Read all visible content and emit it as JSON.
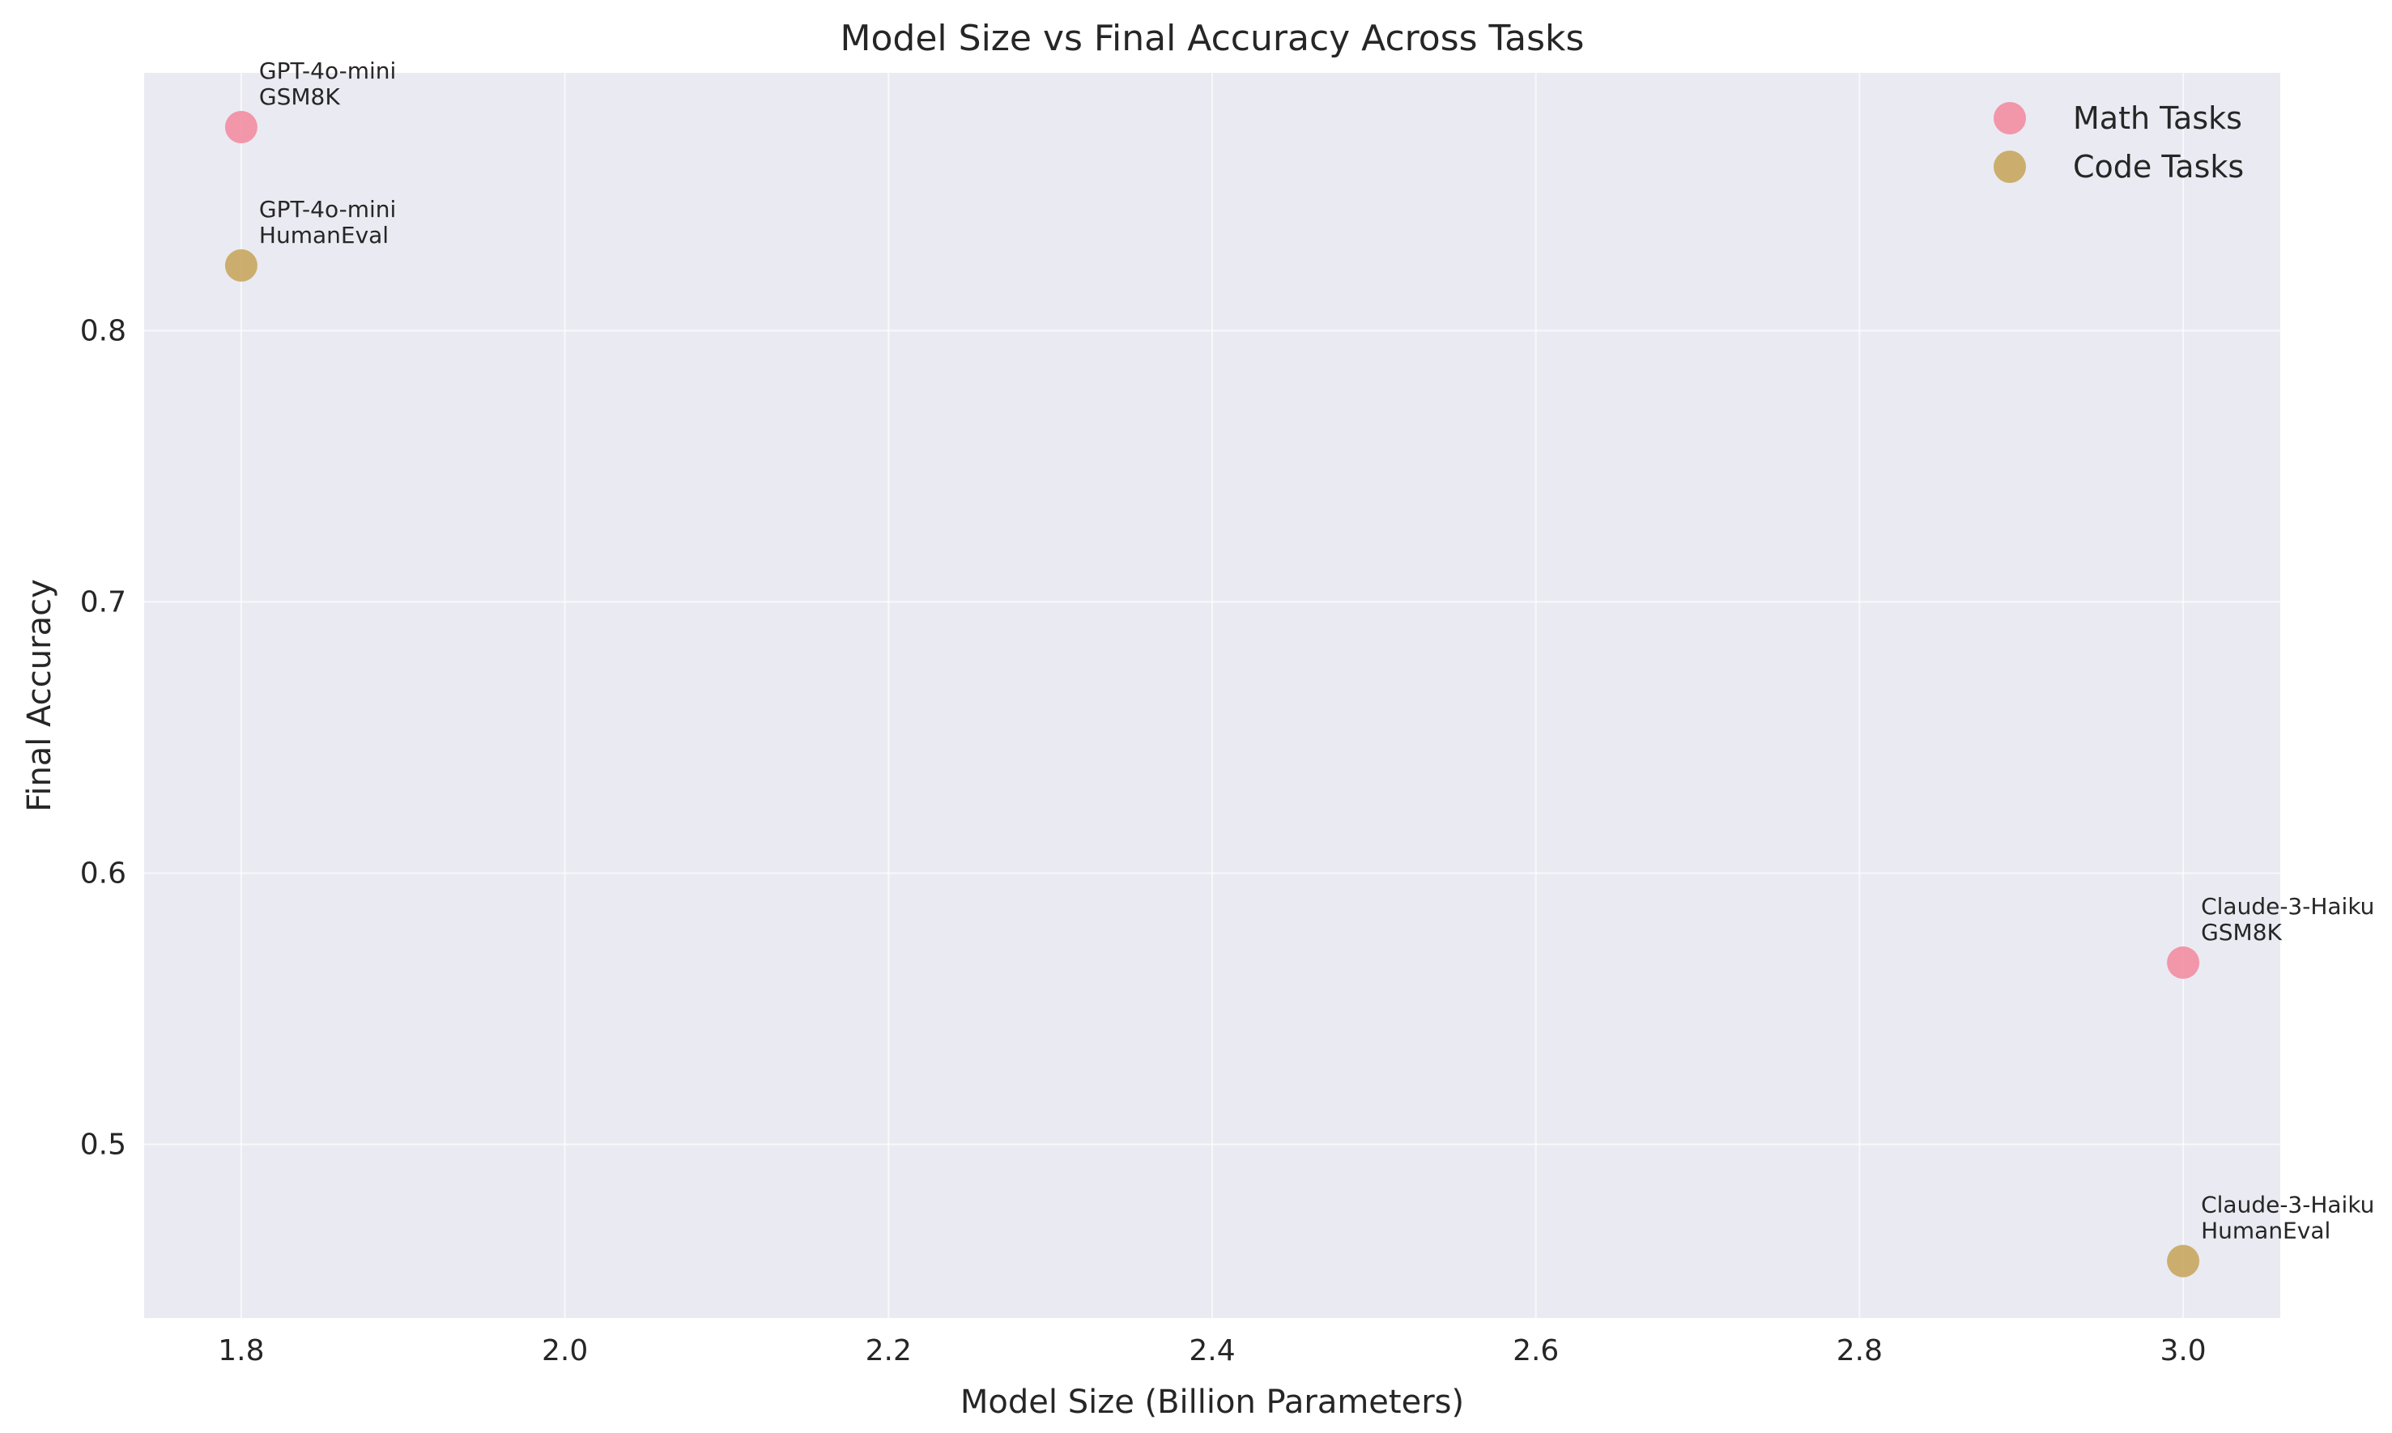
{
  "chart_data": {
    "type": "scatter",
    "title": "Model Size vs Final Accuracy Across Tasks",
    "xlabel": "Model Size (Billion Parameters)",
    "ylabel": "Final Accuracy",
    "xlim": [
      1.74,
      3.06
    ],
    "ylim": [
      0.436,
      0.895
    ],
    "xticks": [
      "1.8",
      "2.0",
      "2.2",
      "2.4",
      "2.6",
      "2.8",
      "3.0"
    ],
    "yticks": [
      "0.5",
      "0.6",
      "0.7",
      "0.8"
    ],
    "grid": true,
    "legend_position": "top-right",
    "background": "#eaeaf2",
    "series": [
      {
        "name": "Math Tasks",
        "color": "#f28ea3",
        "points": [
          {
            "x": 1.8,
            "y": 0.875,
            "label": [
              "GPT-4o-mini",
              "GSM8K"
            ]
          },
          {
            "x": 3.0,
            "y": 0.567,
            "label": [
              "Claude-3-Haiku",
              "GSM8K"
            ]
          }
        ]
      },
      {
        "name": "Code Tasks",
        "color": "#c8a862",
        "points": [
          {
            "x": 1.8,
            "y": 0.824,
            "label": [
              "GPT-4o-mini",
              "HumanEval"
            ]
          },
          {
            "x": 3.0,
            "y": 0.457,
            "label": [
              "Claude-3-Haiku",
              "HumanEval"
            ]
          }
        ]
      }
    ]
  }
}
